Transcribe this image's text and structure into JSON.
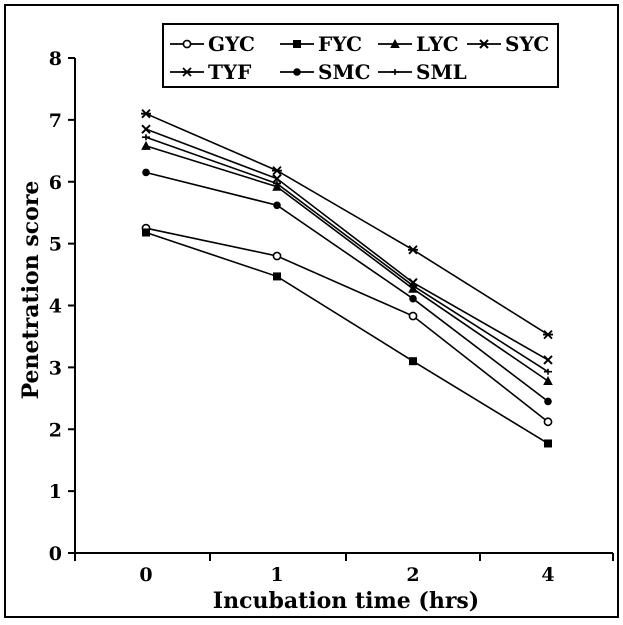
{
  "chart_data": {
    "type": "line",
    "xlabel": "Incubation time (hrs)",
    "ylabel": "Penetration score",
    "categories": [
      "0",
      "1",
      "2",
      "4"
    ],
    "ylim": [
      0,
      8
    ],
    "yticks": [
      "0",
      "1",
      "2",
      "3",
      "4",
      "5",
      "6",
      "7",
      "8"
    ],
    "grid": false,
    "legend_position": "top",
    "series": [
      {
        "name": "GYC",
        "marker": "open-circle",
        "values": [
          5.25,
          4.8,
          3.83,
          2.12
        ]
      },
      {
        "name": "FYC",
        "marker": "filled-square",
        "values": [
          5.18,
          4.47,
          3.1,
          1.77
        ]
      },
      {
        "name": "LYC",
        "marker": "filled-triangle",
        "values": [
          6.58,
          5.92,
          4.27,
          2.78
        ]
      },
      {
        "name": "SYC",
        "marker": "x-cross",
        "values": [
          6.85,
          6.05,
          4.37,
          3.12
        ]
      },
      {
        "name": "TYF",
        "marker": "star",
        "values": [
          7.1,
          6.18,
          4.9,
          3.53
        ]
      },
      {
        "name": "SMC",
        "marker": "filled-circle",
        "values": [
          6.15,
          5.62,
          4.11,
          2.45
        ]
      },
      {
        "name": "SML",
        "marker": "plus",
        "values": [
          6.72,
          5.97,
          4.32,
          2.93
        ]
      }
    ]
  }
}
